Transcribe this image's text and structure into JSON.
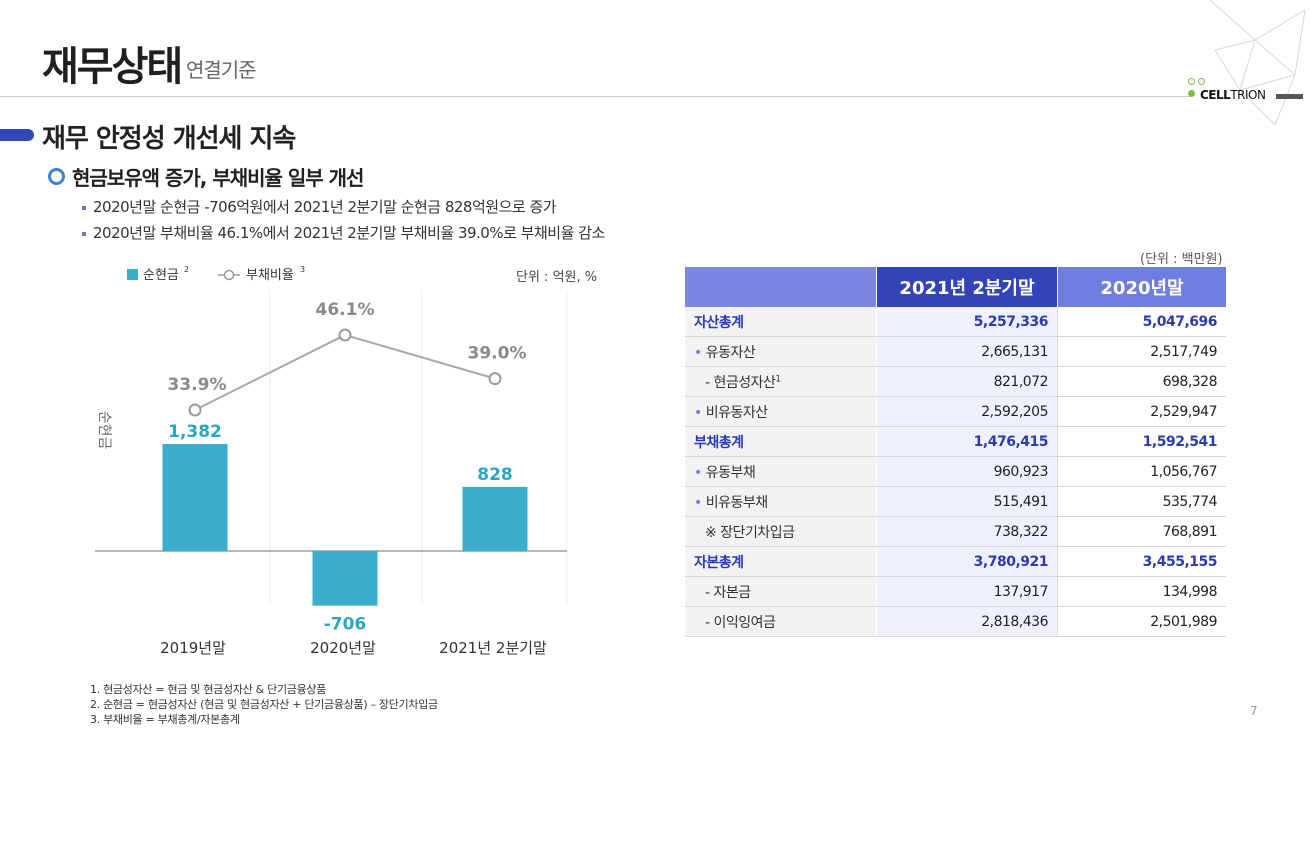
{
  "header": {
    "title": "재무상태",
    "subtitle": "연결기준",
    "logo": "CELLTRION"
  },
  "section": {
    "title": "재무 안정성 개선세 지속",
    "subtitle": "현금보유액 증가, 부채비율 일부 개선",
    "bullets": [
      "2020년말 순현금 -706억원에서  2021년 2분기말 순현금 828억원으로 증가",
      "2020년말 부채비율 46.1%에서  2021년 2분기말 부채비율 39.0%로 부채비율 감소"
    ]
  },
  "chart_data": {
    "type": "bar",
    "categories": [
      "2019년말",
      "2020년말",
      "2021년 2분기말"
    ],
    "series": [
      {
        "name": "순현금",
        "type": "bar",
        "values": [
          1382,
          -706,
          828
        ],
        "labels": [
          "1,382",
          "-706",
          "828"
        ],
        "color": "#3aaecb"
      },
      {
        "name": "부채비율",
        "type": "line",
        "values": [
          33.9,
          46.1,
          39.0
        ],
        "labels": [
          "33.9%",
          "46.1%",
          "39.0%"
        ],
        "color": "#a8a8a8"
      }
    ],
    "legend": {
      "bar_label": "순현금",
      "bar_sup": "2",
      "line_label": "부채비율",
      "line_sup": "3",
      "position": "top-left"
    },
    "ylabel": "순현금",
    "unit": "단위 : 억원, %"
  },
  "table": {
    "unit": "(단위 : 백만원)",
    "headers": [
      "",
      "2021년 2분기말",
      "2020년말"
    ],
    "rows": [
      {
        "label": "자산총계",
        "v2021": "5,257,336",
        "v2020": "5,047,696"
      },
      {
        "label": "유동자산",
        "v2021": "2,665,131",
        "v2020": "2,517,749"
      },
      {
        "label": "- 현금성자산",
        "sup": "1",
        "v2021": "821,072",
        "v2020": "698,328"
      },
      {
        "label": "비유동자산",
        "v2021": "2,592,205",
        "v2020": "2,529,947"
      },
      {
        "label": "부채총계",
        "v2021": "1,476,415",
        "v2020": "1,592,541"
      },
      {
        "label": "유동부채",
        "v2021": "960,923",
        "v2020": "1,056,767"
      },
      {
        "label": "비유동부채",
        "v2021": "515,491",
        "v2020": "535,774"
      },
      {
        "label": "※ 장단기차입금",
        "v2021": "738,322",
        "v2020": "768,891"
      },
      {
        "label": "자본총계",
        "v2021": "3,780,921",
        "v2020": "3,455,155"
      },
      {
        "label": "- 자본금",
        "v2021": "137,917",
        "v2020": "134,998"
      },
      {
        "label": "- 이익잉여금",
        "v2021": "2,818,436",
        "v2020": "2,501,989"
      }
    ]
  },
  "footnotes": [
    "1. 현금성자산 = 현금 및 현금성자산 & 단기금융상품",
    "2. 순현금 = 현금성자산 (현금 및 현금성자산 + 단기금융상품) – 장단기차입금",
    "3. 부채비율 = 부채총계/자본총계"
  ],
  "page_number": "7"
}
